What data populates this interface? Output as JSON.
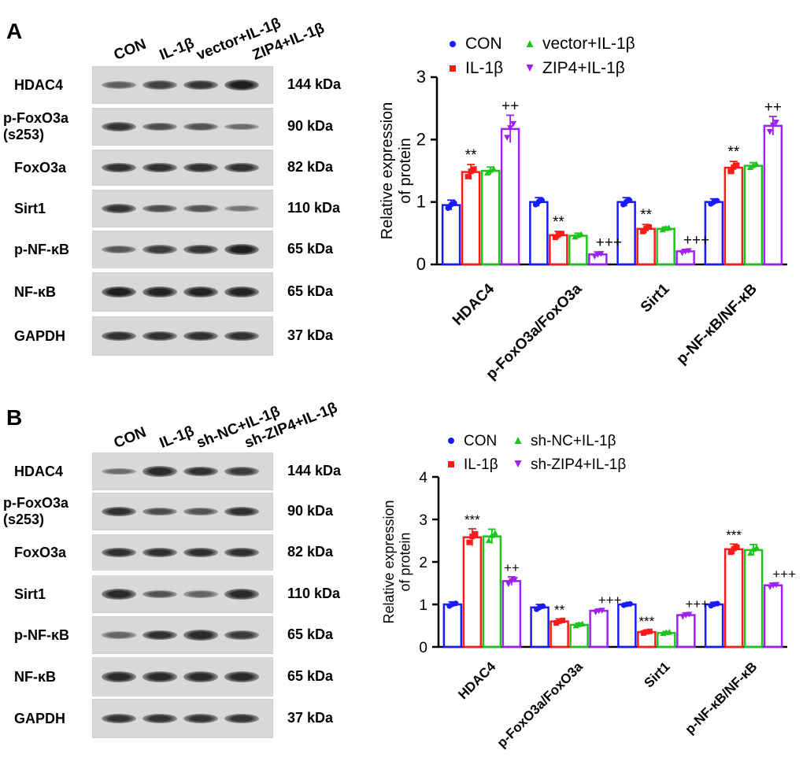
{
  "panelA": {
    "letter": "A",
    "lanes": [
      "CON",
      "IL-1β",
      "vector+IL-1β",
      "ZIP4+IL-1β"
    ],
    "rows": [
      {
        "name": "HDAC4",
        "kda": "144 kDa",
        "bands": [
          0.45,
          0.7,
          0.8,
          1.0
        ]
      },
      {
        "name": "p-FoxO3a\n(s253)",
        "kda": "90 kDa",
        "bands": [
          0.8,
          0.6,
          0.55,
          0.35
        ]
      },
      {
        "name": "FoxO3a",
        "kda": "82 kDa",
        "bands": [
          0.85,
          0.85,
          0.85,
          0.85
        ]
      },
      {
        "name": "Sirt1",
        "kda": "110 kDa",
        "bands": [
          0.8,
          0.6,
          0.55,
          0.25
        ]
      },
      {
        "name": "p-NF-κB",
        "kda": "65 kDa",
        "bands": [
          0.5,
          0.75,
          0.8,
          1.0
        ]
      },
      {
        "name": "NF-κB",
        "kda": "65 kDa",
        "bands": [
          1.0,
          0.95,
          0.95,
          0.95
        ]
      },
      {
        "name": "GAPDH",
        "kda": "37 kDa",
        "bands": [
          0.85,
          0.85,
          0.85,
          0.85
        ]
      }
    ]
  },
  "panelB": {
    "letter": "B",
    "lanes": [
      "CON",
      "IL-1β",
      "sh-NC+IL-1β",
      "sh-ZIP4+IL-1β"
    ],
    "rows": [
      {
        "name": "HDAC4",
        "kda": "144 kDa",
        "bands": [
          0.35,
          0.9,
          0.85,
          0.75
        ]
      },
      {
        "name": "p-FoxO3a\n(s253)",
        "kda": "90 kDa",
        "bands": [
          0.85,
          0.6,
          0.55,
          0.85
        ]
      },
      {
        "name": "FoxO3a",
        "kda": "82 kDa",
        "bands": [
          0.85,
          0.85,
          0.85,
          0.85
        ]
      },
      {
        "name": "Sirt1",
        "kda": "110 kDa",
        "bands": [
          0.9,
          0.55,
          0.4,
          0.9
        ]
      },
      {
        "name": "p-NF-κB",
        "kda": "65 kDa",
        "bands": [
          0.4,
          0.85,
          0.9,
          0.75
        ]
      },
      {
        "name": "NF-κB",
        "kda": "65 kDa",
        "bands": [
          0.9,
          0.9,
          0.9,
          0.9
        ]
      },
      {
        "name": "GAPDH",
        "kda": "37 kDa",
        "bands": [
          0.8,
          0.8,
          0.8,
          0.8
        ]
      }
    ]
  },
  "colors": {
    "CON": "#1a1aff",
    "IL": "#ff1a1a",
    "vec": "#1ec41e",
    "zip": "#a020f0"
  },
  "chart_data": [
    {
      "type": "bar",
      "panel": "A",
      "categories": [
        "HDAC4",
        "p-FoxO3a/FoxO3a",
        "Sirt1",
        "p-NF-κB/NF-κB"
      ],
      "ylabel": "Relative expression\nof protein",
      "ylim": [
        0,
        3
      ],
      "yticks": [
        0,
        1,
        2,
        3
      ],
      "legend": [
        "CON",
        "IL-1β",
        "vector+IL-1β",
        "ZIP4+IL-1β"
      ],
      "series": [
        {
          "name": "CON",
          "values": [
            0.95,
            1.0,
            1.0,
            1.0
          ],
          "errors": [
            0.08,
            0.07,
            0.07,
            0.05
          ]
        },
        {
          "name": "IL-1β",
          "values": [
            1.48,
            0.47,
            0.57,
            1.55
          ],
          "errors": [
            0.12,
            0.06,
            0.07,
            0.1
          ]
        },
        {
          "name": "vector+IL-1β",
          "values": [
            1.5,
            0.46,
            0.57,
            1.58
          ],
          "errors": [
            0.06,
            0.04,
            0.03,
            0.05
          ]
        },
        {
          "name": "ZIP4+IL-1β",
          "values": [
            2.17,
            0.16,
            0.21,
            2.22
          ],
          "errors": [
            0.22,
            0.04,
            0.03,
            0.15
          ]
        }
      ],
      "annotations": [
        {
          "category": 0,
          "series": 1,
          "text": "**"
        },
        {
          "category": 0,
          "series": 3,
          "text": "++"
        },
        {
          "category": 1,
          "series": 1,
          "text": "**"
        },
        {
          "category": 1,
          "series": 3,
          "text": "+++"
        },
        {
          "category": 2,
          "series": 1,
          "text": "**"
        },
        {
          "category": 2,
          "series": 3,
          "text": "+++"
        },
        {
          "category": 3,
          "series": 1,
          "text": "**"
        },
        {
          "category": 3,
          "series": 3,
          "text": "++"
        }
      ]
    },
    {
      "type": "bar",
      "panel": "B",
      "categories": [
        "HDAC4",
        "p-FoxO3a/FoxO3a",
        "Sirt1",
        "p-NF-κB/NF-κB"
      ],
      "ylabel": "Relative expression\nof protein",
      "ylim": [
        0,
        4
      ],
      "yticks": [
        0,
        1,
        2,
        3,
        4
      ],
      "legend": [
        "CON",
        "IL-1β",
        "sh-NC+IL-1β",
        "sh-ZIP4+IL-1β"
      ],
      "series": [
        {
          "name": "CON",
          "values": [
            1.0,
            0.93,
            1.0,
            1.0
          ],
          "errors": [
            0.06,
            0.07,
            0.03,
            0.05
          ]
        },
        {
          "name": "IL-1β",
          "values": [
            2.58,
            0.6,
            0.35,
            2.3
          ],
          "errors": [
            0.2,
            0.06,
            0.04,
            0.12
          ]
        },
        {
          "name": "sh-NC+IL-1β",
          "values": [
            2.6,
            0.52,
            0.33,
            2.28
          ],
          "errors": [
            0.17,
            0.04,
            0.03,
            0.13
          ]
        },
        {
          "name": "sh-ZIP4+IL-1β",
          "values": [
            1.55,
            0.85,
            0.75,
            1.45
          ],
          "errors": [
            0.1,
            0.04,
            0.05,
            0.05
          ]
        }
      ],
      "annotations": [
        {
          "category": 0,
          "series": 1,
          "text": "***"
        },
        {
          "category": 0,
          "series": 3,
          "text": "++"
        },
        {
          "category": 1,
          "series": 1,
          "text": "**"
        },
        {
          "category": 1,
          "series": 3,
          "text": "+++"
        },
        {
          "category": 2,
          "series": 1,
          "text": "***"
        },
        {
          "category": 2,
          "series": 3,
          "text": "+++"
        },
        {
          "category": 3,
          "series": 1,
          "text": "***"
        },
        {
          "category": 3,
          "series": 3,
          "text": "+++"
        }
      ]
    }
  ]
}
